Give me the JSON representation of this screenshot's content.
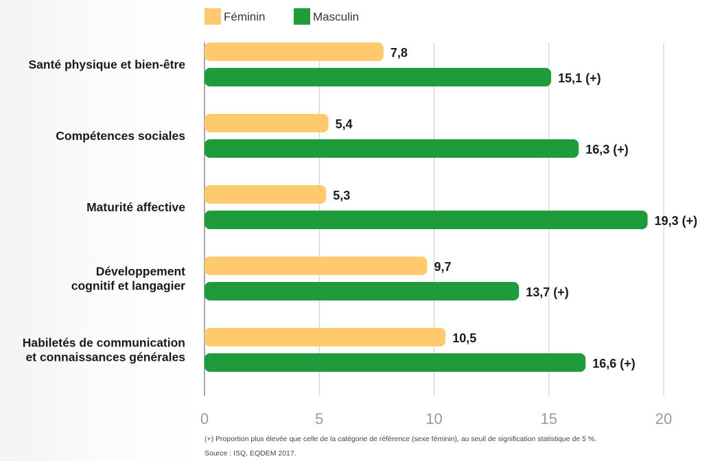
{
  "chart_data": {
    "type": "bar",
    "orientation": "horizontal",
    "categories": [
      [
        "Santé physique et bien-être"
      ],
      [
        "Compétences sociales"
      ],
      [
        "Maturité affective"
      ],
      [
        "Développement",
        "cognitif et langagier"
      ],
      [
        "Habiletés de communication",
        "et connaissances générales"
      ]
    ],
    "series": [
      {
        "name": "Féminin",
        "color": "#ffca6e",
        "values": [
          7.8,
          5.4,
          5.3,
          9.7,
          10.5
        ],
        "labels": [
          "7,8",
          "5,4",
          "5,3",
          "9,7",
          "10,5"
        ]
      },
      {
        "name": "Masculin",
        "color": "#1e9b3b",
        "values": [
          15.1,
          16.3,
          19.3,
          13.7,
          16.6
        ],
        "labels": [
          "15,1 (+)",
          "16,3 (+)",
          "19,3 (+)",
          "13,7 (+)",
          "16,6 (+)"
        ]
      }
    ],
    "xlim": [
      0,
      20
    ],
    "xticks": [
      0,
      5,
      10,
      15,
      20
    ],
    "grid": true,
    "legend_position": "top"
  },
  "footnote": "(+) Proportion plus élevée que celle de la catégorie de référence (sexe féminin), au seuil de signification statistique de 5 %.",
  "source": "Source : ISQ, EQDEM 2017."
}
